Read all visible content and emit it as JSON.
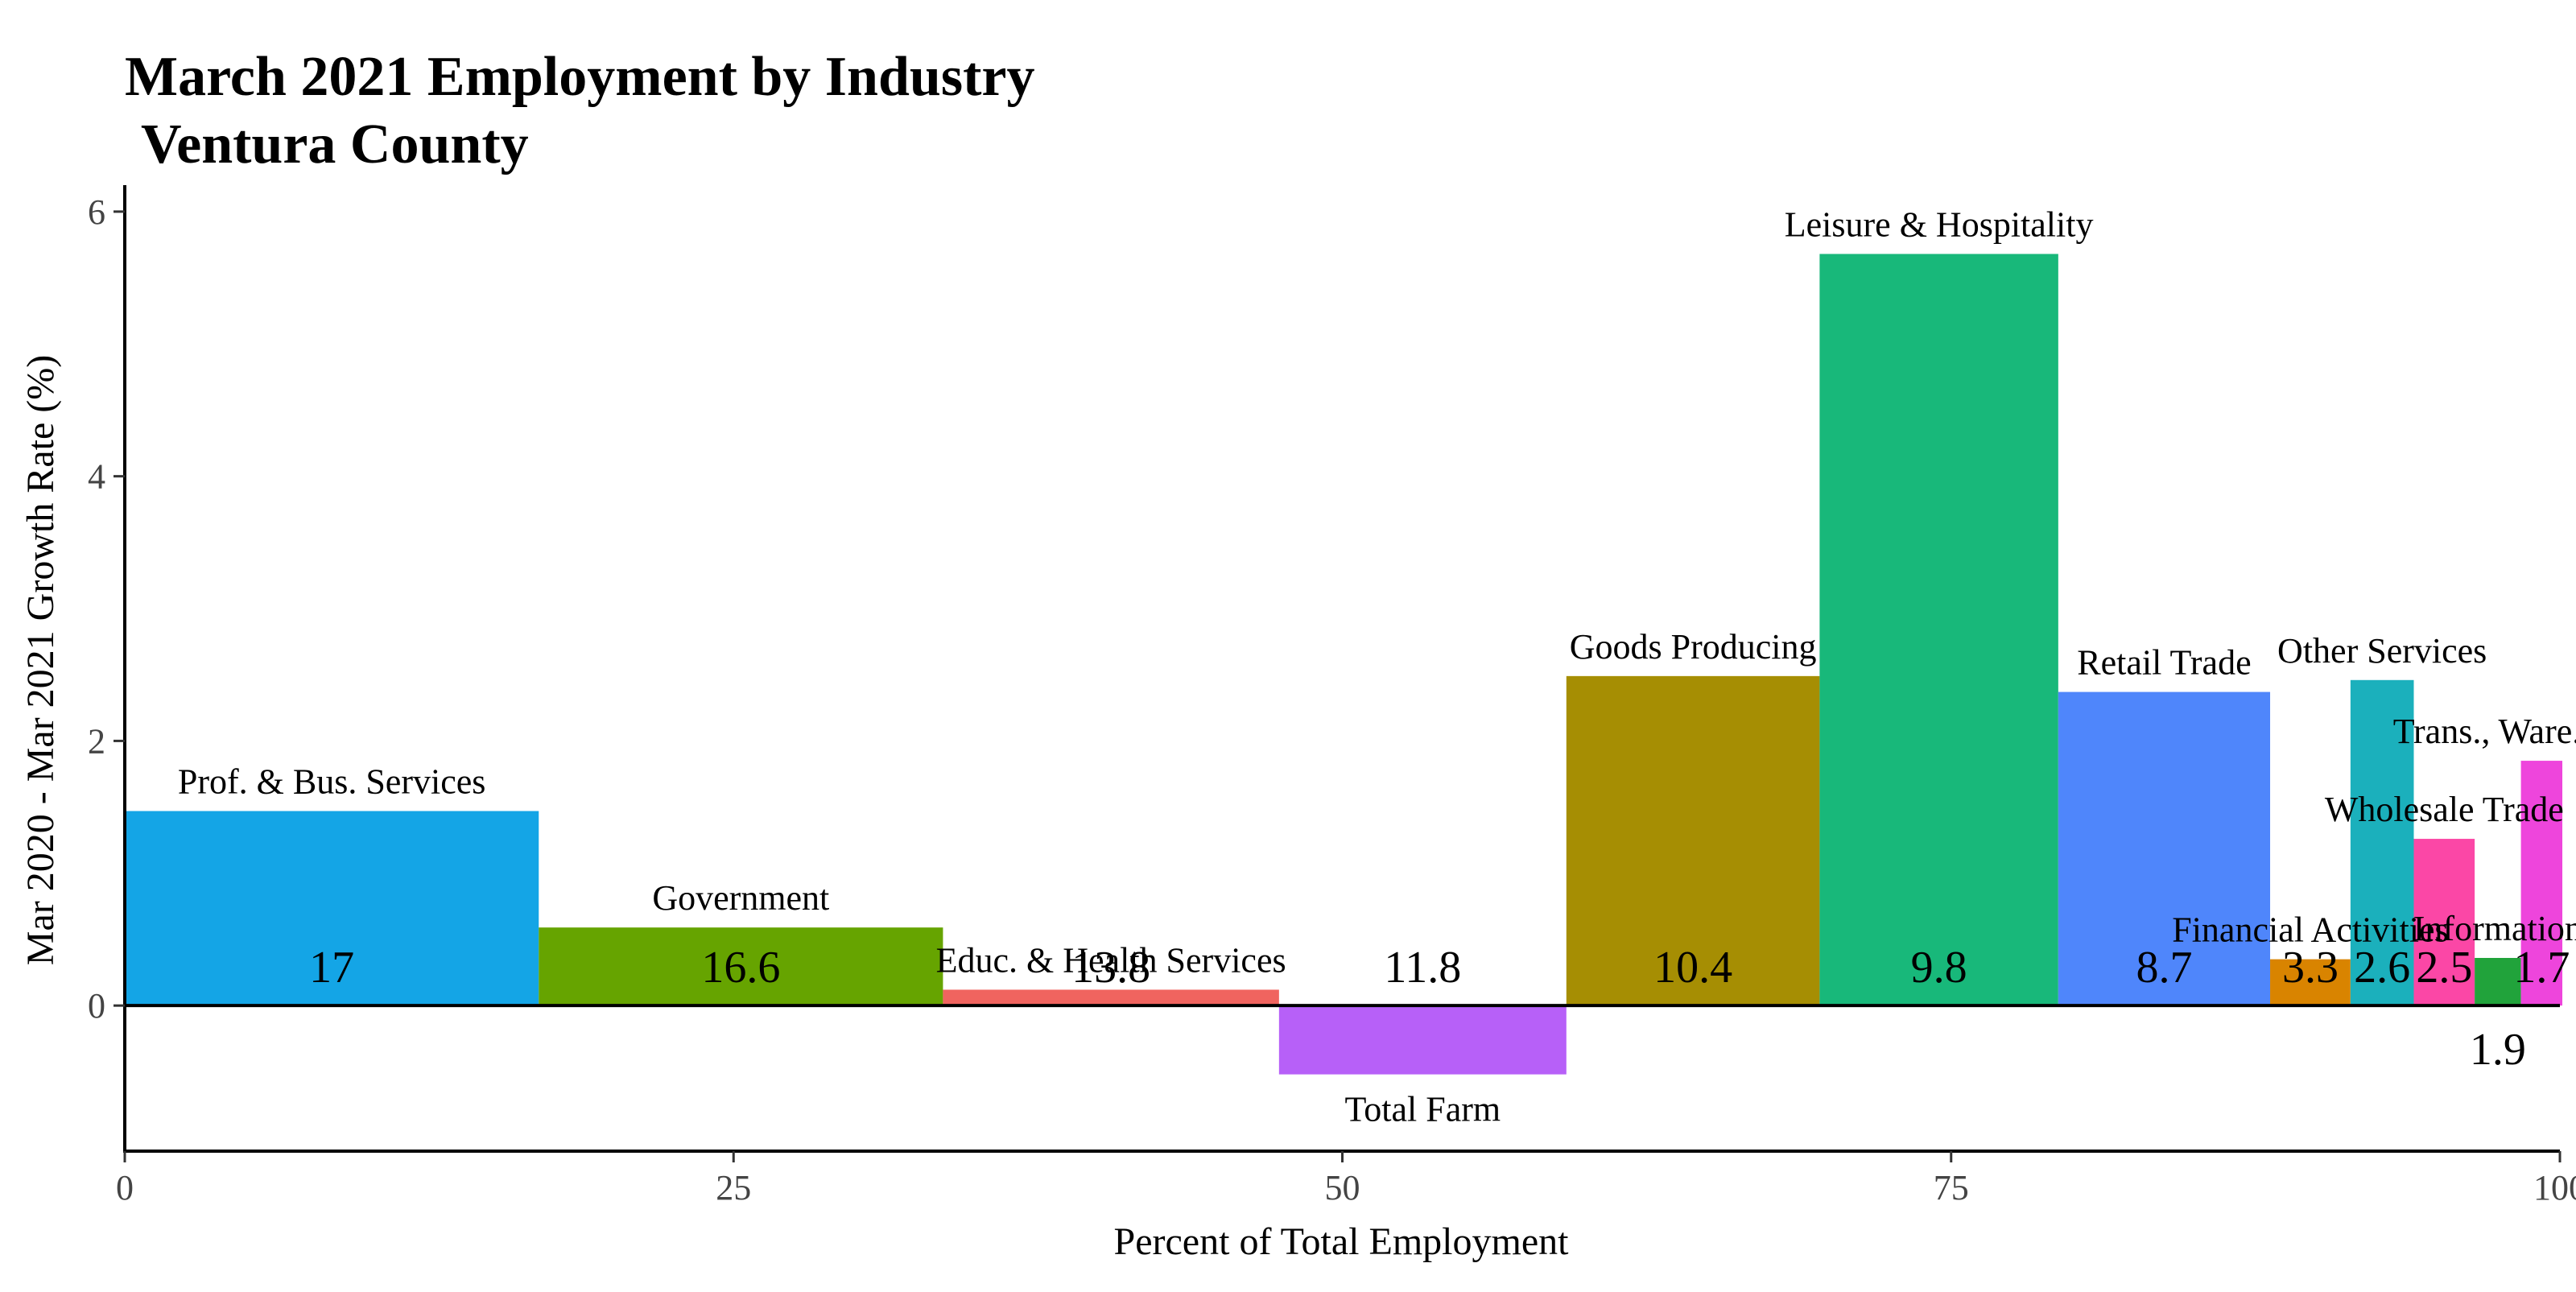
{
  "chart_data": {
    "type": "bar",
    "title": "March 2021 Employment by Industry",
    "subtitle": "Ventura County",
    "xlabel": "Percent of Total Employment",
    "ylabel": "Mar 2020 - Mar 2021 Growth Rate (%)",
    "xlim": [
      0,
      100
    ],
    "ylim": [
      -1.1,
      6.2
    ],
    "xticks": [
      0,
      25,
      50,
      75,
      100
    ],
    "yticks": [
      0,
      2,
      4,
      6
    ],
    "grid": false,
    "legend": "none",
    "bars": [
      {
        "category": "Prof. & Bus. Services",
        "share": 17,
        "share_label": "17",
        "growth": 1.47,
        "color": "#14A5E6"
      },
      {
        "category": "Government",
        "share": 16.6,
        "share_label": "16.6",
        "growth": 0.59,
        "color": "#66A400"
      },
      {
        "category": "Educ. & Health Services",
        "share": 13.8,
        "share_label": "13.8",
        "growth": 0.12,
        "color": "#F0645F"
      },
      {
        "category": "Total Farm",
        "share": 11.8,
        "share_label": "11.8",
        "growth": -0.52,
        "color": "#B760F8"
      },
      {
        "category": "Goods Producing",
        "share": 10.4,
        "share_label": "10.4",
        "growth": 2.49,
        "color": "#A68E03"
      },
      {
        "category": "Leisure & Hospitality",
        "share": 9.8,
        "share_label": "9.8",
        "growth": 5.68,
        "color": "#18B87A"
      },
      {
        "category": "Retail Trade",
        "share": 8.7,
        "share_label": "8.7",
        "growth": 2.37,
        "color": "#4F86FB"
      },
      {
        "category": "Financial Activities",
        "share": 3.3,
        "share_label": "3.3",
        "growth": 0.35,
        "color": "#D98400"
      },
      {
        "category": "Other Services",
        "share": 2.6,
        "share_label": "2.6",
        "growth": 2.46,
        "color": "#1BB0BC"
      },
      {
        "category": "Wholesale Trade",
        "share": 2.5,
        "share_label": "2.5",
        "growth": 1.26,
        "color": "#FB47A6"
      },
      {
        "category": "Information",
        "share": 1.9,
        "share_label": "1.9",
        "growth": 0.36,
        "color": "#21A33B"
      },
      {
        "category": "Trans., Ware. & Util.",
        "share": 1.7,
        "share_label": "1.7",
        "growth": 1.85,
        "color": "#EE45DC"
      }
    ]
  }
}
